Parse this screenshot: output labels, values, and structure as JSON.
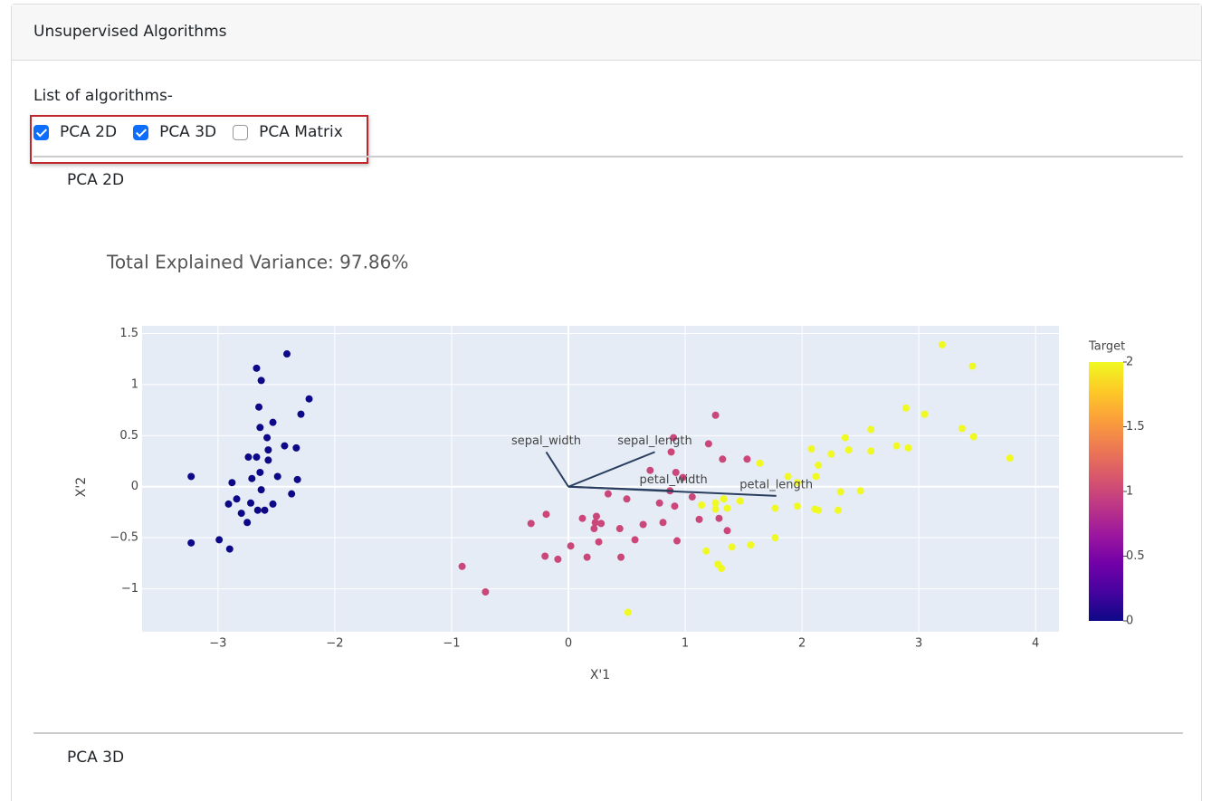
{
  "header": {
    "title": "Unsupervised Algorithms"
  },
  "list_label": "List of algorithms-",
  "checkboxes": [
    {
      "label": "PCA 2D",
      "checked": true
    },
    {
      "label": "PCA 3D",
      "checked": true
    },
    {
      "label": "PCA Matrix",
      "checked": false
    }
  ],
  "sections": [
    {
      "title": "PCA 2D"
    },
    {
      "title": "PCA 3D"
    }
  ],
  "chart_data": {
    "type": "scatter",
    "title": "Total Explained Variance: 97.86%",
    "xlabel": "X'1",
    "ylabel": "X'2",
    "xlim": [
      -3.65,
      4.2
    ],
    "ylim": [
      -1.42,
      1.575
    ],
    "xticks": [
      {
        "value": -3,
        "label": "−3"
      },
      {
        "value": -2,
        "label": "−2"
      },
      {
        "value": -1,
        "label": "−1"
      },
      0,
      1,
      2,
      3,
      4
    ],
    "yticks": [
      {
        "value": -1,
        "label": "−1"
      },
      {
        "value": -0.5,
        "label": "−0.5"
      },
      0,
      0.5,
      1,
      1.5
    ],
    "grid": true,
    "colorbar": {
      "title": "Target",
      "clim": [
        0,
        2
      ],
      "ticks": [
        0,
        0.5,
        1,
        1.5,
        2
      ]
    },
    "colorscale": [
      "#0d0887",
      "#46039f",
      "#7201a8",
      "#9c179e",
      "#bd3786",
      "#d8576b",
      "#ed7953",
      "#fb9f3a",
      "#fdca26",
      "#f0f921"
    ],
    "points": {
      "x": [
        -2.41,
        -2.67,
        -2.63,
        -2.22,
        -2.65,
        -2.29,
        -2.53,
        -2.64,
        -2.58,
        -2.43,
        -2.33,
        -2.57,
        -2.74,
        -2.67,
        -2.57,
        -3.23,
        -2.49,
        -2.64,
        -2.32,
        -2.88,
        -2.71,
        -2.63,
        -2.84,
        -2.53,
        -2.37,
        -2.91,
        -2.72,
        -2.66,
        -2.8,
        -2.6,
        -2.75,
        -3.23,
        -2.99,
        -2.9,
        1.26,
        0.9,
        1.2,
        0.88,
        1.53,
        1.32,
        0.7,
        0.92,
        0.98,
        0.34,
        0.5,
        0.78,
        0.87,
        1.06,
        0.91,
        0.12,
        0.24,
        0.23,
        0.28,
        0.22,
        0.81,
        -0.19,
        -0.32,
        0.64,
        1.12,
        1.29,
        1.36,
        0.44,
        0.26,
        0.57,
        0.93,
        0.02,
        -0.2,
        -0.09,
        0.16,
        0.45,
        -0.91,
        -0.71,
        3.2,
        3.46,
        2.89,
        3.05,
        2.59,
        3.37,
        2.37,
        3.47,
        2.08,
        2.4,
        2.59,
        2.81,
        2.91,
        2.25,
        3.78,
        2.14,
        1.64,
        1.88,
        2.12,
        1.96,
        2.33,
        2.5,
        1.33,
        1.47,
        1.14,
        1.26,
        1.77,
        1.96,
        2.11,
        2.31,
        2.14,
        1.36,
        1.26,
        1.77,
        1.56,
        1.4,
        1.18,
        1.28,
        1.31,
        0.51
      ],
      "y": [
        1.3,
        1.16,
        1.04,
        0.86,
        0.78,
        0.71,
        0.63,
        0.58,
        0.48,
        0.4,
        0.38,
        0.36,
        0.29,
        0.29,
        0.26,
        0.1,
        0.1,
        0.14,
        0.07,
        0.04,
        0.08,
        -0.03,
        -0.12,
        -0.17,
        -0.07,
        -0.17,
        -0.16,
        -0.23,
        -0.26,
        -0.23,
        -0.35,
        -0.55,
        -0.52,
        -0.61,
        0.7,
        0.48,
        0.42,
        0.34,
        0.27,
        0.27,
        0.16,
        0.14,
        0.09,
        -0.07,
        -0.12,
        -0.16,
        -0.04,
        -0.1,
        -0.19,
        -0.31,
        -0.29,
        -0.35,
        -0.36,
        -0.41,
        -0.35,
        -0.27,
        -0.36,
        -0.37,
        -0.32,
        -0.31,
        -0.43,
        -0.41,
        -0.54,
        -0.52,
        -0.53,
        -0.58,
        -0.68,
        -0.71,
        -0.69,
        -0.69,
        -0.78,
        -1.03,
        1.39,
        1.18,
        0.77,
        0.71,
        0.56,
        0.57,
        0.48,
        0.49,
        0.37,
        0.36,
        0.35,
        0.4,
        0.38,
        0.32,
        0.28,
        0.21,
        0.23,
        0.1,
        0.1,
        0.04,
        -0.05,
        -0.04,
        -0.12,
        -0.14,
        -0.18,
        -0.16,
        -0.21,
        -0.19,
        -0.22,
        -0.23,
        -0.23,
        -0.21,
        -0.22,
        -0.5,
        -0.57,
        -0.59,
        -0.63,
        -0.76,
        -0.8,
        -1.23
      ],
      "target": [
        0,
        0,
        0,
        0,
        0,
        0,
        0,
        0,
        0,
        0,
        0,
        0,
        0,
        0,
        0,
        0,
        0,
        0,
        0,
        0,
        0,
        0,
        0,
        0,
        0,
        0,
        0,
        0,
        0,
        0,
        0,
        0,
        0,
        0,
        1,
        1,
        1,
        1,
        1,
        1,
        1,
        1,
        1,
        1,
        1,
        1,
        1,
        1,
        1,
        1,
        1,
        1,
        1,
        1,
        1,
        1,
        1,
        1,
        1,
        1,
        1,
        1,
        1,
        1,
        1,
        1,
        1,
        1,
        1,
        1,
        1,
        1,
        2,
        2,
        2,
        2,
        2,
        2,
        2,
        2,
        2,
        2,
        2,
        2,
        2,
        2,
        2,
        2,
        2,
        2,
        2,
        2,
        2,
        2,
        2,
        2,
        2,
        2,
        2,
        2,
        2,
        2,
        2,
        2,
        2,
        2,
        2,
        2,
        2,
        2,
        2,
        2
      ]
    },
    "loadings": [
      {
        "name": "sepal_length",
        "x": 0.74,
        "y": 0.34
      },
      {
        "name": "sepal_width",
        "x": -0.19,
        "y": 0.34
      },
      {
        "name": "petal_width",
        "x": 0.9,
        "y": -0.04
      },
      {
        "name": "petal_length",
        "x": 1.78,
        "y": -0.09
      }
    ],
    "loading_color": "#2a3f5f"
  }
}
